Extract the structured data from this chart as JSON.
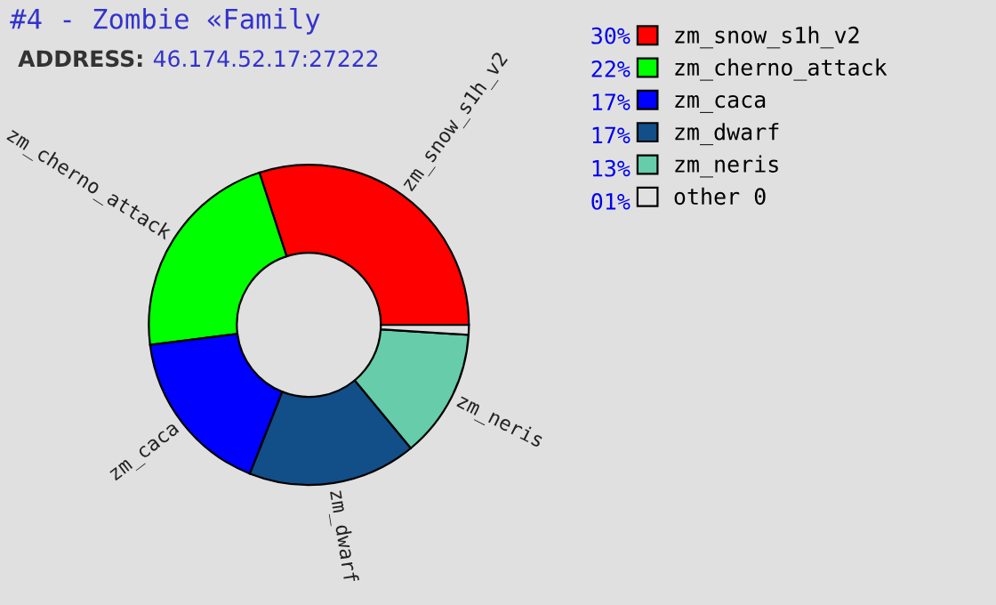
{
  "chart_data": {
    "type": "donut",
    "title": "#4 - Zombie «Family",
    "annotations": [
      "ADDRESS:",
      "46.174.52.17:27222"
    ],
    "categories": [
      "zm_snow_s1h_v2",
      "zm_cherno_attack",
      "zm_caca",
      "zm_dwarf",
      "zm_neris",
      "other 0"
    ],
    "values": [
      30,
      22,
      17,
      17,
      13,
      1
    ],
    "value_labels": [
      "30%",
      "22%",
      "17%",
      "17%",
      "13%",
      "01%"
    ],
    "colors": [
      "#ff0000",
      "#00ff00",
      "#0000ff",
      "#124e88",
      "#66ccaa",
      "#e0e0e0"
    ],
    "legend": "right"
  }
}
